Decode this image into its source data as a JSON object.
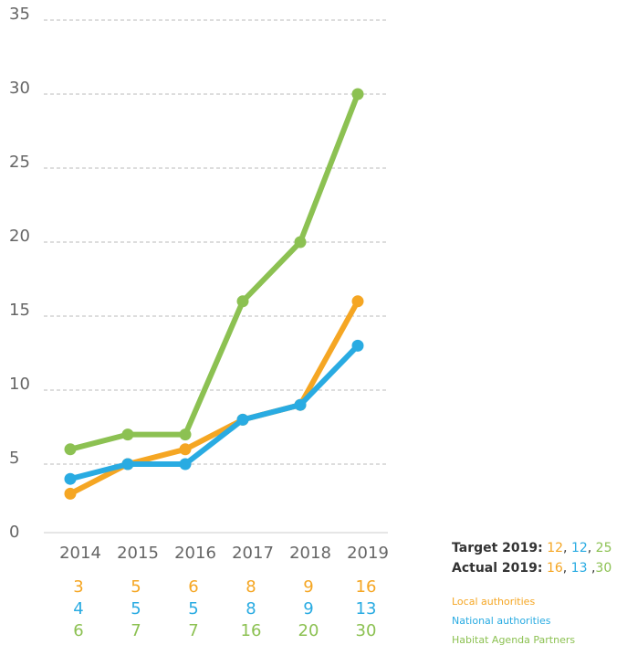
{
  "chart_data": {
    "type": "line",
    "categories": [
      "2014",
      "2015",
      "2016",
      "2017",
      "2018",
      "2019"
    ],
    "series": [
      {
        "name": "Local authorities",
        "color": "#f5a623",
        "values": [
          3,
          5,
          6,
          8,
          9,
          16
        ]
      },
      {
        "name": "National authorities",
        "color": "#29abe2",
        "values": [
          4,
          5,
          5,
          8,
          9,
          13
        ]
      },
      {
        "name": "Habitat Agenda Partners",
        "color": "#8cc152",
        "values": [
          6,
          7,
          7,
          16,
          20,
          30
        ]
      }
    ],
    "ylim": [
      0,
      35
    ],
    "yticks": [
      0,
      5,
      10,
      15,
      20,
      25,
      30,
      35
    ],
    "grid": true,
    "target": {
      "label": "Target 2019:",
      "values": [
        12,
        12,
        25
      ],
      "separators": [
        ", ",
        ", "
      ]
    },
    "actual": {
      "label": "Actual 2019:",
      "values": [
        16,
        13,
        30
      ],
      "separators": [
        ", ",
        " ,"
      ]
    }
  }
}
